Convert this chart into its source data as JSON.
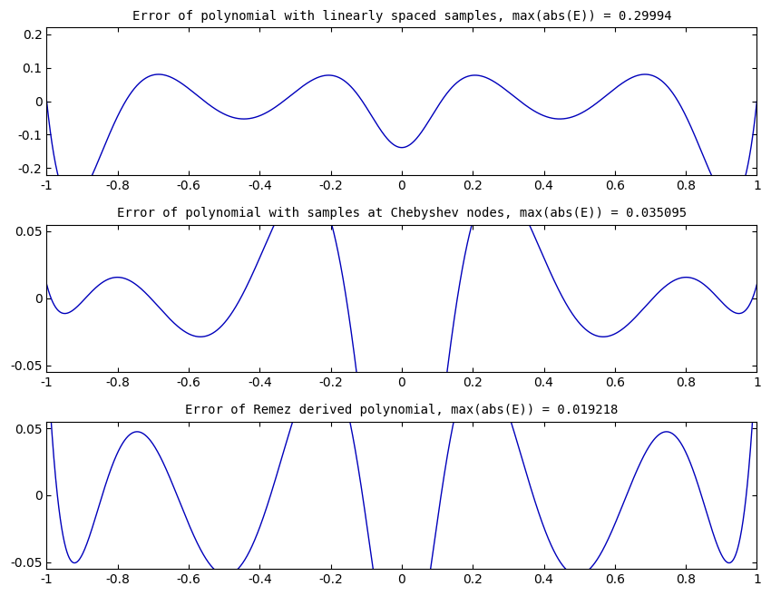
{
  "title1": "Error of polynomial with linearly spaced samples, max(abs(E)) = 0.29994",
  "title2": "Error of polynomial with samples at Chebyshev nodes, max(abs(E)) = 0.035095",
  "title3": "Error of Remez derived polynomial, max(abs(E)) = 0.019218",
  "line_color": "#0000bb",
  "line_width": 1.0,
  "xlim": [
    -1,
    1
  ],
  "ylim1": [
    -0.22,
    0.22
  ],
  "ylim2": [
    -0.055,
    0.055
  ],
  "ylim3": [
    -0.055,
    0.055
  ],
  "yticks1": [
    -0.2,
    -0.1,
    0.0,
    0.1,
    0.2
  ],
  "yticks2": [
    -0.05,
    0.0,
    0.05
  ],
  "yticks3": [
    -0.05,
    0.0,
    0.05
  ],
  "xticks": [
    -1.0,
    -0.8,
    -0.6,
    -0.4,
    -0.2,
    0.0,
    0.2,
    0.4,
    0.6,
    0.8,
    1.0
  ],
  "n_points": 2000,
  "background_color": "#ffffff",
  "font_size_title": 10,
  "font_size_tick": 10
}
